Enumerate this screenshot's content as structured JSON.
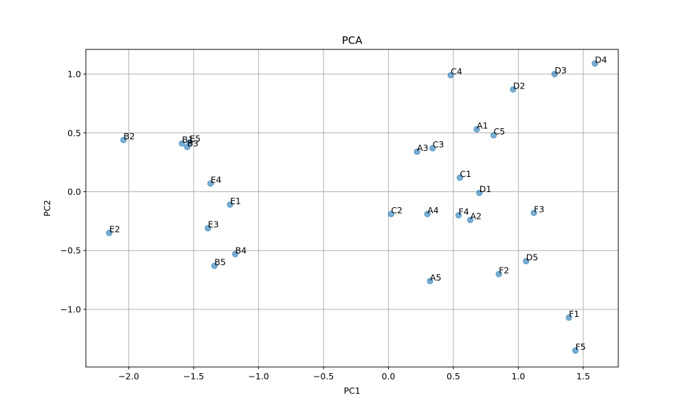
{
  "chart_data": {
    "type": "scatter",
    "title": "PCA",
    "xlabel": "PC1",
    "ylabel": "PC2",
    "xlim": [
      -2.33,
      1.77
    ],
    "ylim": [
      -1.49,
      1.21
    ],
    "grid": true,
    "marker_color": "#1f77b4",
    "marker_opacity": 0.6,
    "xticks": [
      -2.0,
      -1.5,
      -1.0,
      -0.5,
      0.0,
      0.5,
      1.0,
      1.5
    ],
    "xtick_labels": [
      "−2.0",
      "−1.5",
      "−1.0",
      "−0.5",
      "0.0",
      "0.5",
      "1.0",
      "1.5"
    ],
    "yticks": [
      -1.0,
      -0.5,
      0.0,
      0.5,
      1.0
    ],
    "ytick_labels": [
      "−1.0",
      "−0.5",
      "0.0",
      "0.5",
      "1.0"
    ],
    "points": [
      {
        "label": "A1",
        "x": 0.68,
        "y": 0.53
      },
      {
        "label": "A2",
        "x": 0.63,
        "y": -0.24
      },
      {
        "label": "A3",
        "x": 0.22,
        "y": 0.34
      },
      {
        "label": "A4",
        "x": 0.3,
        "y": -0.19
      },
      {
        "label": "A5",
        "x": 0.32,
        "y": -0.76
      },
      {
        "label": "B1",
        "x": -1.59,
        "y": 0.41
      },
      {
        "label": "B2",
        "x": -2.04,
        "y": 0.44
      },
      {
        "label": "B3",
        "x": -1.55,
        "y": 0.38
      },
      {
        "label": "B4",
        "x": -1.18,
        "y": -0.53
      },
      {
        "label": "B5",
        "x": -1.34,
        "y": -0.63
      },
      {
        "label": "C1",
        "x": 0.55,
        "y": 0.12
      },
      {
        "label": "C2",
        "x": 0.02,
        "y": -0.19
      },
      {
        "label": "C3",
        "x": 0.34,
        "y": 0.37
      },
      {
        "label": "C4",
        "x": 0.48,
        "y": 0.99
      },
      {
        "label": "C5",
        "x": 0.81,
        "y": 0.48
      },
      {
        "label": "D1",
        "x": 0.7,
        "y": -0.01
      },
      {
        "label": "D2",
        "x": 0.96,
        "y": 0.87
      },
      {
        "label": "D3",
        "x": 1.28,
        "y": 1.0
      },
      {
        "label": "D4",
        "x": 1.59,
        "y": 1.09
      },
      {
        "label": "D5",
        "x": 1.06,
        "y": -0.59
      },
      {
        "label": "E1",
        "x": -1.22,
        "y": -0.11
      },
      {
        "label": "E2",
        "x": -2.15,
        "y": -0.35
      },
      {
        "label": "E3",
        "x": -1.39,
        "y": -0.31
      },
      {
        "label": "E4",
        "x": -1.37,
        "y": 0.07
      },
      {
        "label": "E5",
        "x": -1.53,
        "y": 0.42
      },
      {
        "label": "F1",
        "x": 1.39,
        "y": -1.07
      },
      {
        "label": "F2",
        "x": 0.85,
        "y": -0.7
      },
      {
        "label": "F3",
        "x": 1.12,
        "y": -0.18
      },
      {
        "label": "F4",
        "x": 0.54,
        "y": -0.2
      },
      {
        "label": "F5",
        "x": 1.44,
        "y": -1.35
      }
    ]
  }
}
